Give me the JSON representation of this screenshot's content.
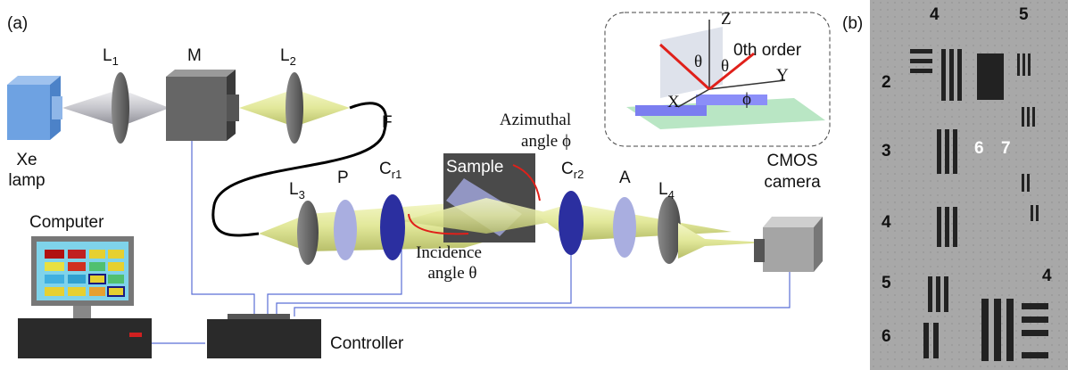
{
  "panel_a": {
    "label": "(a)",
    "xe_lamp": [
      "Xe",
      "lamp"
    ],
    "l1": {
      "base": "L",
      "sub": "1"
    },
    "m": "M",
    "l2": {
      "base": "L",
      "sub": "2"
    },
    "f": "F",
    "l3": {
      "base": "L",
      "sub": "3"
    },
    "p": "P",
    "cr1": {
      "base": "C",
      "sub": "r1"
    },
    "sample": "Sample",
    "azimuthal": [
      "Azimuthal",
      "angle ϕ"
    ],
    "cr2": {
      "base": "C",
      "sub": "r2"
    },
    "a": "A",
    "l4": {
      "base": "L",
      "sub": "4"
    },
    "cmos": [
      "CMOS",
      "camera"
    ],
    "computer": "Computer",
    "incidence": [
      "Incidence",
      "angle θ"
    ],
    "controller": "Controller",
    "inset": {
      "z": "Z",
      "theta1": "θ",
      "theta2": "θ",
      "order": "0th order",
      "y": "Y",
      "x": "X",
      "phi": "ϕ"
    }
  },
  "panel_b": {
    "label": "(b)",
    "group_labels": [
      "4",
      "5",
      "2",
      "3",
      "4",
      "5",
      "6",
      "4",
      "6",
      "7"
    ]
  }
}
